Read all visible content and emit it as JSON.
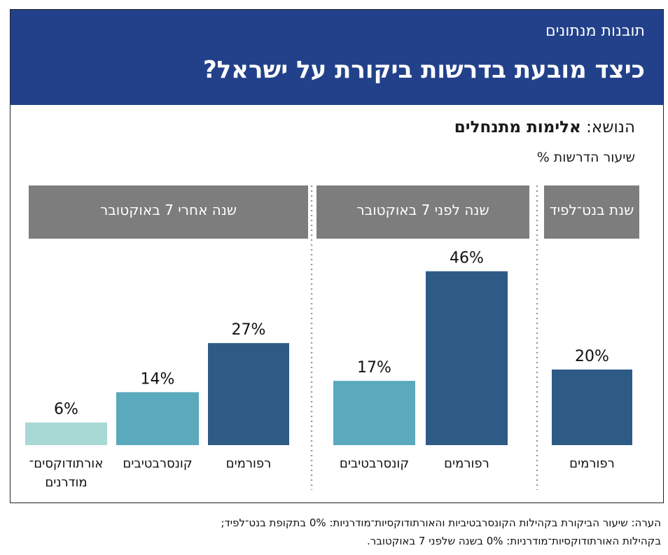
{
  "header": {
    "kicker": "תובנות מנתונים",
    "title": "כיצד מובעת בדרשות ביקורת על ישראל?"
  },
  "topic": {
    "prefix": "הנושא: ",
    "value": "אלימות מתנחלים"
  },
  "unit_label": "שיעור הדרשות %",
  "colors": {
    "banner": "#22418a",
    "panel_header": "#7d7d7d",
    "reform": "#2e5a86",
    "conservative": "#5aa9bd",
    "orthodox": "#a9d9d5"
  },
  "chart_data": {
    "type": "bar",
    "value_suffix": "%",
    "panels": [
      {
        "title": "שנת בנט־לפיד",
        "bars": [
          {
            "label": "רפורמים",
            "value": 20,
            "color_key": "reform"
          }
        ]
      },
      {
        "title": "שנה לפני 7 באוקטובר",
        "bars": [
          {
            "label": "רפורמים",
            "value": 46,
            "color_key": "reform"
          },
          {
            "label": "קונסרבטיבים",
            "value": 17,
            "color_key": "conservative"
          }
        ]
      },
      {
        "title": "שנה אחרי 7 באוקטובר",
        "bars": [
          {
            "label": "רפורמים",
            "value": 27,
            "color_key": "reform"
          },
          {
            "label": "קונסרבטיבים",
            "value": 14,
            "color_key": "conservative"
          },
          {
            "label": "אורתודוקסים־ מודרנים",
            "value": 6,
            "color_key": "orthodox"
          }
        ]
      }
    ]
  },
  "notes": [
    "הערה: שיעור הביקורת בקהילות הקונסרבטיביות והאורתודוקסיות־מודרניות: 0% בתקופת בנט־לפיד;",
    "בקהילות האורתודוקסיות־מודרניות: 0% בשנה שלפני 7 באוקטובר."
  ]
}
